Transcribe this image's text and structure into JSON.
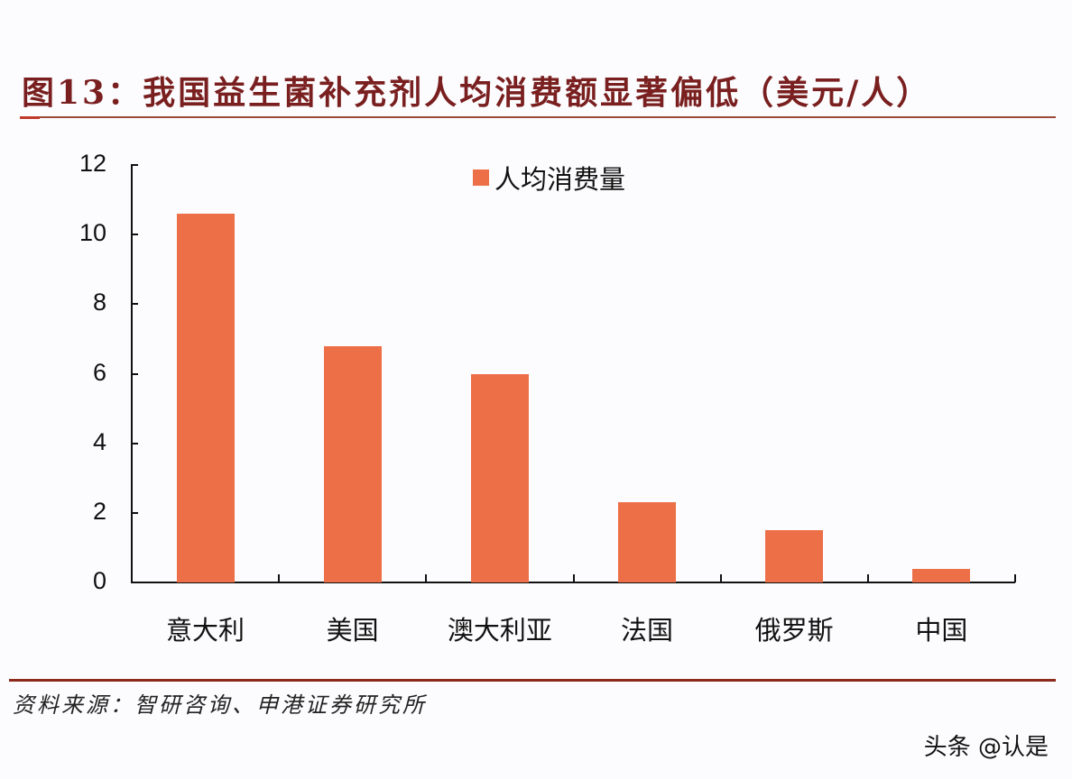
{
  "header": {
    "title": "图13：我国益生菌补充剂人均消费额显著偏低（美元/人）"
  },
  "footer": {
    "source": "资料来源：智研咨询、申港证券研究所",
    "watermark": "头条 @认是"
  },
  "colors": {
    "bar": "#ed6f48",
    "title": "#7a1f1f",
    "rule": "#8e2a1c"
  },
  "chart_data": {
    "type": "bar",
    "title": "我国益生菌补充剂人均消费额显著偏低（美元/人）",
    "xlabel": "",
    "ylabel": "",
    "categories": [
      "意大利",
      "美国",
      "澳大利亚",
      "法国",
      "俄罗斯",
      "中国"
    ],
    "series": [
      {
        "name": "人均消费量",
        "values": [
          10.6,
          6.8,
          6.0,
          2.3,
          1.5,
          0.4
        ]
      }
    ],
    "ylim": [
      0,
      12
    ],
    "yticks": [
      "0",
      "2",
      "4",
      "6",
      "8",
      "10",
      "12"
    ],
    "grid": false,
    "legend_position": "top-center"
  }
}
